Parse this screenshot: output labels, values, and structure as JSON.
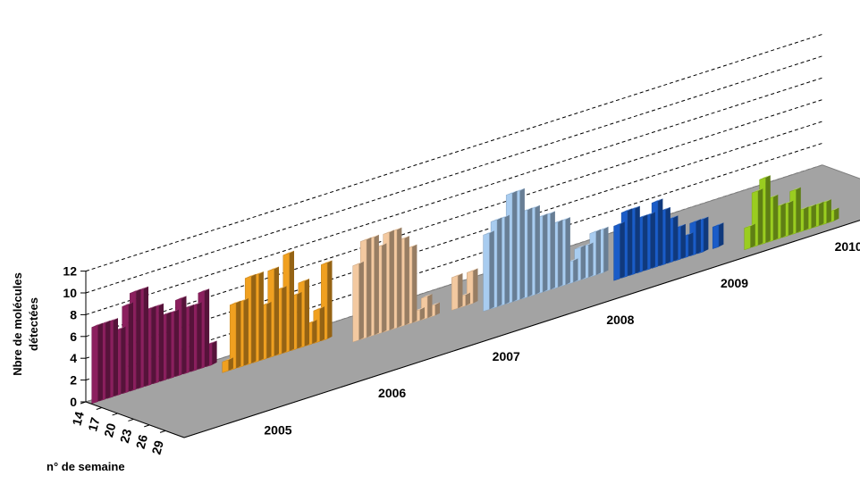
{
  "chart_data": {
    "type": "bar",
    "is_3d": true,
    "title": "",
    "ylabel": "Nbre de molécules détectées",
    "xlabel": "n° de semaine",
    "ylim": [
      0,
      12
    ],
    "y_ticks": [
      "0",
      "2",
      "4",
      "6",
      "8",
      "10",
      "12"
    ],
    "x_ticks": [
      "14",
      "17",
      "20",
      "23",
      "26",
      "29"
    ],
    "grid": true,
    "series": [
      {
        "name": "2005",
        "color": "#8b1f5e",
        "values": [
          7,
          7,
          7,
          6,
          8,
          9,
          9,
          7,
          7,
          6,
          6,
          7,
          6,
          6,
          7,
          2
        ]
      },
      {
        "name": "2006",
        "color": "#f0a020",
        "values": [
          1,
          6,
          6,
          8,
          8,
          5,
          8,
          6,
          9,
          5,
          6,
          2,
          3,
          7
        ]
      },
      {
        "name": "2007",
        "color": "#f3c9a0",
        "values": [
          7,
          9,
          9,
          8,
          9,
          9,
          8,
          7,
          1,
          2,
          1,
          0,
          0,
          3,
          1,
          3
        ]
      },
      {
        "name": "2008",
        "color": "#a8ccf0",
        "values": [
          7,
          8,
          8,
          10,
          10,
          8,
          8,
          7,
          7,
          6,
          6,
          2,
          3,
          3,
          4,
          4
        ]
      },
      {
        "name": "2009",
        "color": "#1a5cc8",
        "values": [
          5,
          6,
          6,
          5,
          5,
          6,
          5,
          4,
          3,
          2,
          3,
          3,
          0,
          2
        ]
      },
      {
        "name": "2010",
        "color": "#9acd20",
        "values": [
          2,
          5,
          6,
          4,
          3,
          3,
          4,
          2,
          2,
          2,
          2,
          1
        ]
      }
    ]
  }
}
